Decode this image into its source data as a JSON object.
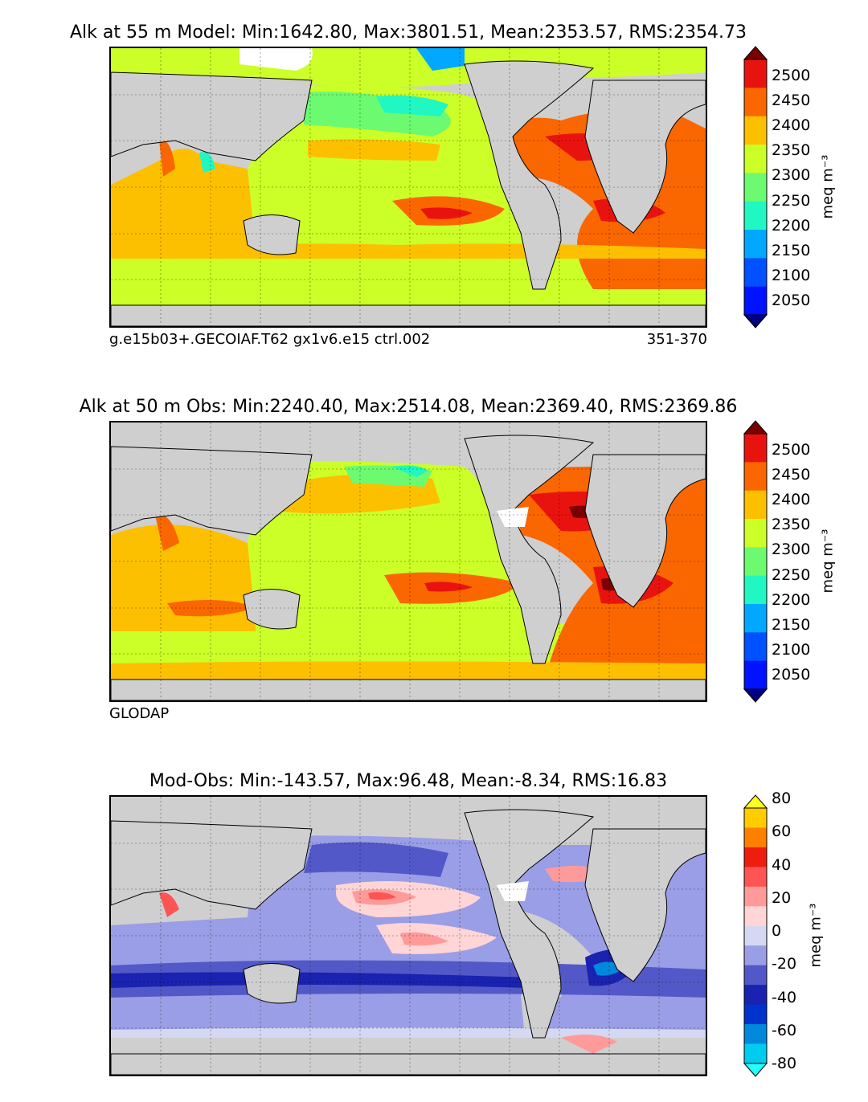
{
  "panels": [
    {
      "title": "Alk at 55 m Model: Min:1642.80, Max:3801.51, Mean:2353.57, RMS:2354.73",
      "footer_left": "g.e15b03+.GECOIAF.T62 gx1v6.e15 ctrl.002",
      "footer_right": "351-370",
      "colorbar": {
        "ticks": [
          "2500",
          "2450",
          "2400",
          "2350",
          "2300",
          "2250",
          "2200",
          "2150",
          "2100",
          "2050"
        ],
        "unit": "meq m⁻³",
        "colors": [
          "#7a0000",
          "#e8130f",
          "#fa6600",
          "#fdc000",
          "#ccff27",
          "#6cfa70",
          "#20f7c2",
          "#00a9ff",
          "#0051ff",
          "#0012ff",
          "#00007f"
        ]
      }
    },
    {
      "title": "Alk at 50 m Obs: Min:2240.40, Max:2514.08, Mean:2369.40, RMS:2369.86",
      "footer_left": "GLODAP",
      "footer_right": "",
      "colorbar": {
        "ticks": [
          "2500",
          "2450",
          "2400",
          "2350",
          "2300",
          "2250",
          "2200",
          "2150",
          "2100",
          "2050"
        ],
        "unit": "meq m⁻³",
        "colors": [
          "#7a0000",
          "#e8130f",
          "#fa6600",
          "#fdc000",
          "#ccff27",
          "#6cfa70",
          "#20f7c2",
          "#00a9ff",
          "#0051ff",
          "#0012ff",
          "#00007f"
        ]
      }
    },
    {
      "title": "Mod-Obs: Min:-143.57, Max:96.48, Mean:-8.34, RMS:16.83",
      "footer_left": "",
      "footer_right": "",
      "colorbar": {
        "ticks": [
          "80",
          "60",
          "40",
          "20",
          "0",
          "-20",
          "-40",
          "-60",
          "-80"
        ],
        "unit": "meq m⁻³",
        "colors": [
          "#ffff22",
          "#ffcc00",
          "#ff7f00",
          "#ee1d10",
          "#ff5454",
          "#ff9a9a",
          "#ffd5d5",
          "#d4d8f2",
          "#9a9ee6",
          "#5358c8",
          "#1a22b0",
          "#0033cc",
          "#0088dd",
          "#00ccee",
          "#22ffff"
        ]
      }
    }
  ],
  "colors": {
    "land": "#cfcfcf",
    "missing": "#ffffff"
  }
}
